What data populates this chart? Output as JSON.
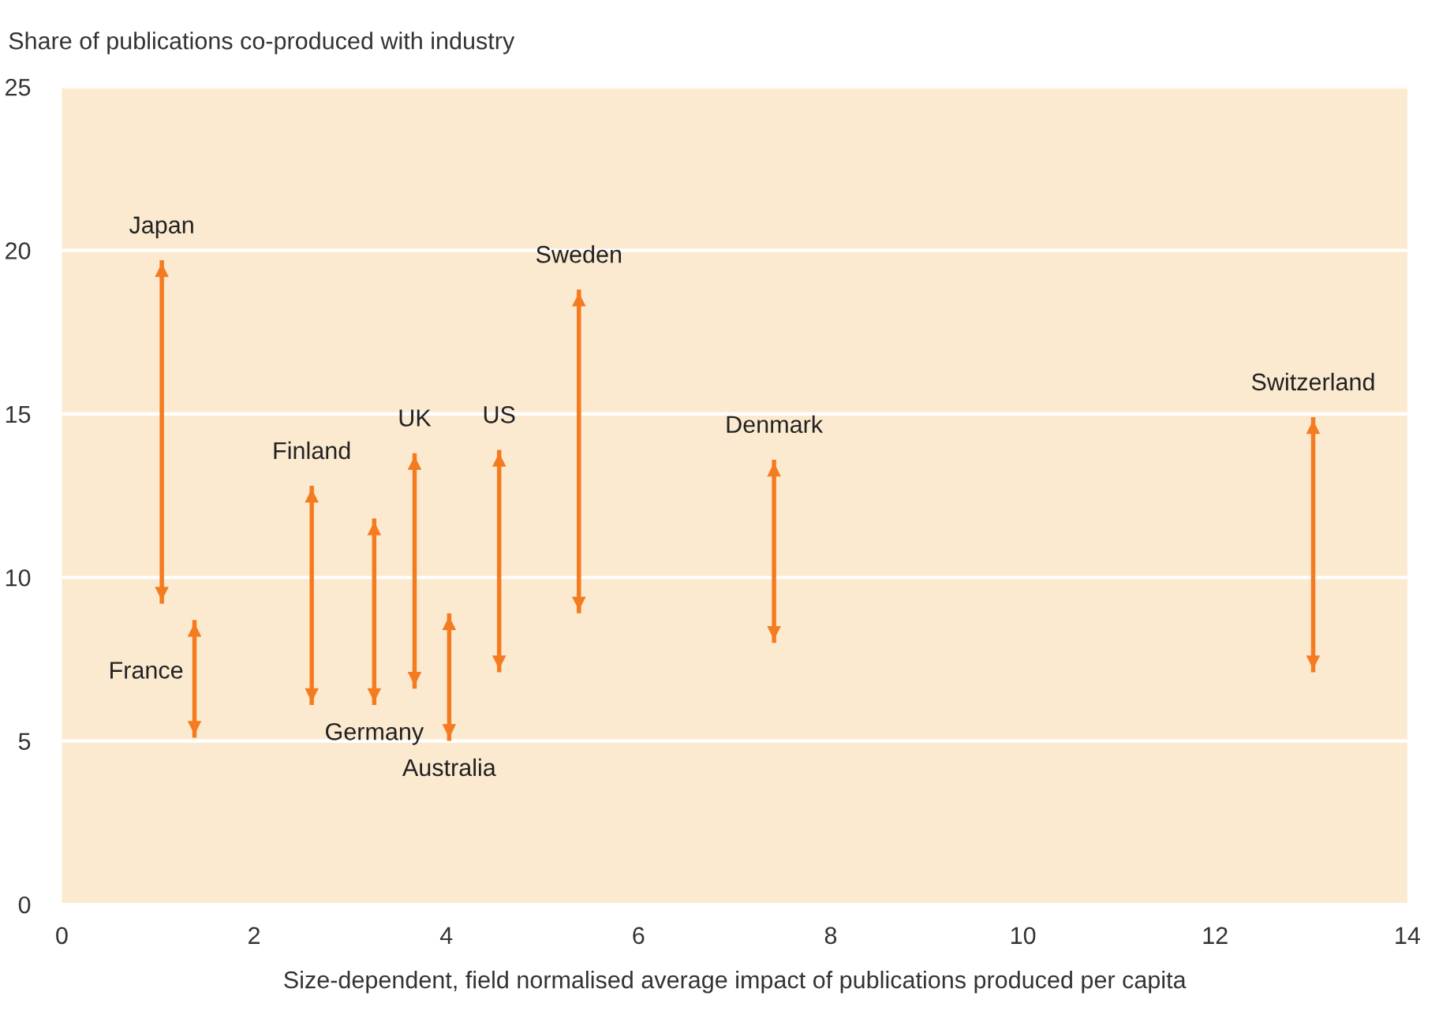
{
  "chart_data": {
    "type": "bar",
    "ylabel": "Share of publications co-produced with industry",
    "xlabel": "Size-dependent, field normalised average impact of publications produced per capita",
    "x": [
      1.04,
      1.38,
      2.6,
      3.25,
      3.67,
      4.03,
      4.55,
      5.38,
      7.41,
      13.02
    ],
    "base": [
      9.2,
      5.1,
      6.1,
      6.1,
      6.6,
      5.0,
      7.1,
      8.9,
      8.0,
      7.1
    ],
    "values": [
      10.5,
      3.6,
      6.7,
      5.7,
      7.2,
      3.9,
      6.8,
      9.9,
      5.6,
      7.8
    ],
    "color": "#f47b20",
    "annotations": [
      {
        "text": "Japan",
        "x": 1.04,
        "y": 19.7
      },
      {
        "text": "France",
        "x": 1.38,
        "y": 7.1
      },
      {
        "text": "Finland",
        "x": 2.6,
        "y": 12.8
      },
      {
        "text": "Germany",
        "x": 3.25,
        "y": 6.1
      },
      {
        "text": "UK",
        "x": 3.67,
        "y": 13.8
      },
      {
        "text": "Australia",
        "x": 4.03,
        "y": 5.0
      },
      {
        "text": "US",
        "x": 4.55,
        "y": 13.9
      },
      {
        "text": "Sweden",
        "x": 5.38,
        "y": 18.8
      },
      {
        "text": "Denmark",
        "x": 7.41,
        "y": 13.6
      },
      {
        "text": "Switzerland",
        "x": 13.02,
        "y": 14.9
      }
    ],
    "xlim": [
      0,
      14
    ],
    "xticks": [
      0,
      2,
      4,
      6,
      8,
      10,
      12,
      14
    ],
    "ylim": [
      0,
      25
    ],
    "yticks": [
      0,
      5,
      10,
      15,
      20,
      25
    ],
    "grid": "y"
  }
}
